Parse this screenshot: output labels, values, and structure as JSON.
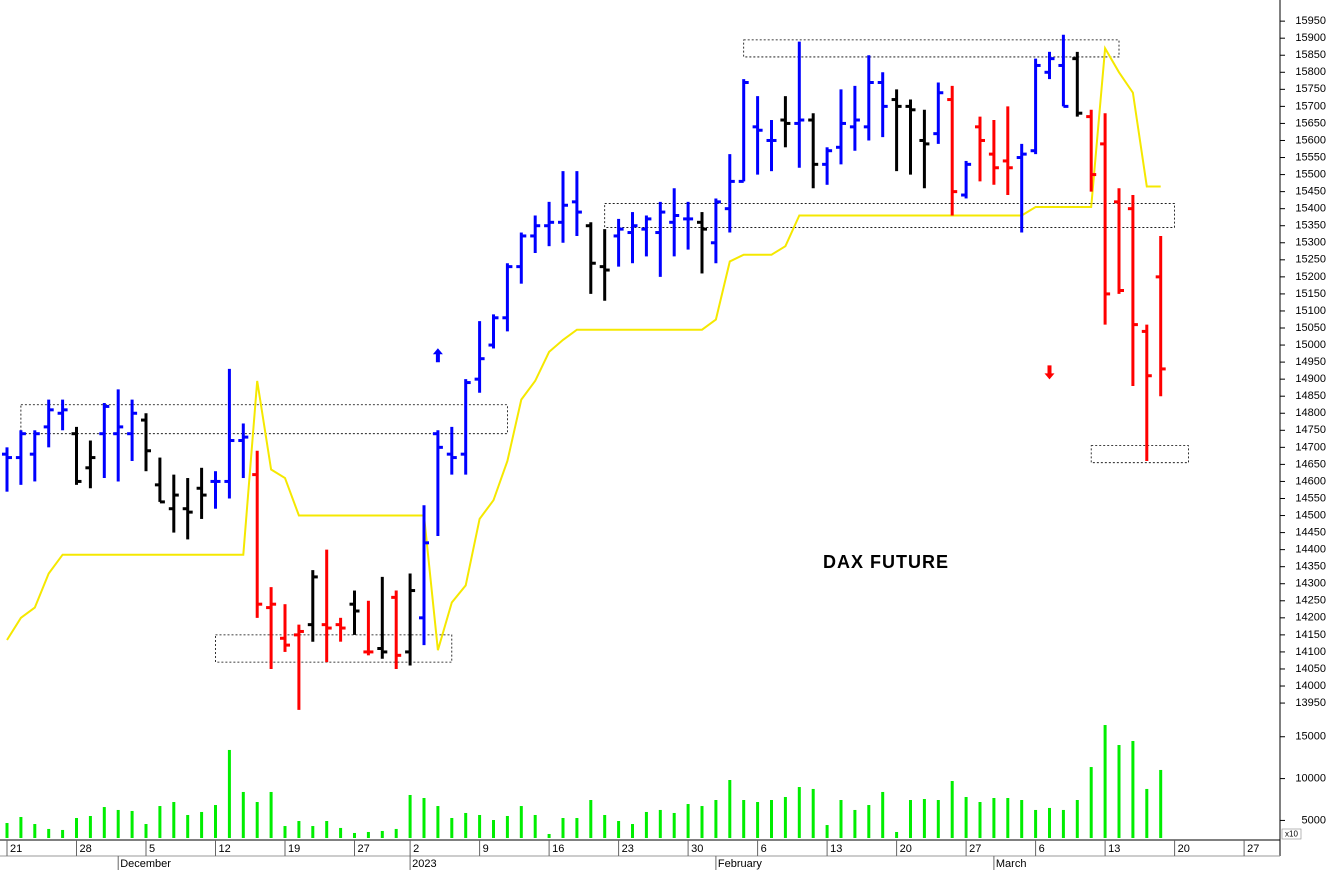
{
  "chart_data": {
    "type": "ohlc",
    "title": "DAX FUTURE",
    "categories": [
      "21",
      null,
      null,
      null,
      null,
      "28",
      null,
      null,
      null,
      null,
      "5",
      null,
      null,
      null,
      null,
      "12",
      null,
      null,
      null,
      null,
      "19",
      null,
      null,
      null,
      null,
      "27",
      null,
      null,
      null,
      "2",
      null,
      null,
      null,
      null,
      "9",
      null,
      null,
      null,
      null,
      "16",
      null,
      null,
      null,
      null,
      "23",
      null,
      null,
      null,
      null,
      "30",
      null,
      null,
      null,
      null,
      "6",
      null,
      null,
      null,
      null,
      "13",
      null,
      null,
      null,
      null,
      "20",
      null,
      null,
      null,
      null,
      "27",
      null,
      null,
      null,
      null,
      "6",
      null,
      null,
      null,
      null,
      "13",
      null,
      null,
      null,
      null,
      "20",
      null,
      null,
      null,
      null,
      "27"
    ],
    "month_labels": [
      null,
      null,
      null,
      null,
      null,
      null,
      null,
      null,
      "December",
      null,
      null,
      null,
      null,
      null,
      null,
      null,
      null,
      null,
      null,
      null,
      null,
      null,
      null,
      null,
      null,
      null,
      null,
      null,
      null,
      "2023",
      null,
      null,
      null,
      null,
      null,
      null,
      null,
      null,
      null,
      null,
      null,
      null,
      null,
      null,
      null,
      null,
      null,
      null,
      null,
      null,
      null,
      "February",
      null,
      null,
      null,
      null,
      null,
      null,
      null,
      null,
      null,
      null,
      null,
      null,
      null,
      null,
      null,
      null,
      null,
      null,
      null,
      "March",
      null,
      null,
      null,
      null,
      null,
      null,
      null,
      null,
      null,
      null,
      null,
      null,
      null,
      null,
      null,
      null,
      null,
      null
    ],
    "high": [
      14700,
      14750,
      14750,
      14840,
      14840,
      14760,
      14720,
      14830,
      14870,
      14840,
      14800,
      14670,
      14620,
      14610,
      14640,
      14630,
      14930,
      14770,
      14690,
      14290,
      14240,
      14180,
      14340,
      14400,
      14200,
      14280,
      14250,
      14320,
      14280,
      14330,
      14530,
      14750,
      14760,
      14900,
      15070,
      15090,
      15240,
      15330,
      15380,
      15420,
      15510,
      15510,
      15360,
      15340,
      15370,
      15390,
      15380,
      15420,
      15460,
      15420,
      15390,
      15430,
      15560,
      15780,
      15730,
      15660,
      15730,
      15890,
      15680,
      15580,
      15750,
      15760,
      15850,
      15800,
      15750,
      15720,
      15690,
      15770,
      15760,
      15540,
      15670,
      15660,
      15700,
      15590,
      15840,
      15860,
      15910,
      15860,
      15690,
      15680,
      15460,
      15440,
      15060,
      15320,
      null,
      null,
      null,
      null,
      null,
      null
    ],
    "low": [
      14570,
      14590,
      14600,
      14700,
      14750,
      14590,
      14580,
      14610,
      14600,
      14660,
      14630,
      14540,
      14450,
      14430,
      14490,
      14520,
      14550,
      14610,
      14200,
      14050,
      14100,
      13930,
      14130,
      14070,
      14130,
      14150,
      14090,
      14080,
      14050,
      14060,
      14120,
      14440,
      14620,
      14620,
      14860,
      14990,
      15040,
      15180,
      15270,
      15290,
      15300,
      15320,
      15150,
      15130,
      15230,
      15240,
      15260,
      15200,
      15260,
      15280,
      15210,
      15240,
      15330,
      15480,
      15500,
      15510,
      15580,
      15520,
      15460,
      15470,
      15530,
      15570,
      15600,
      15610,
      15510,
      15500,
      15460,
      15590,
      15380,
      15430,
      15480,
      15470,
      15440,
      15330,
      15560,
      15780,
      15700,
      15670,
      15450,
      15060,
      15150,
      14880,
      14660,
      14850,
      null,
      null,
      null,
      null,
      null,
      null
    ],
    "open": [
      14680,
      14670,
      14680,
      14760,
      14800,
      14740,
      14640,
      14740,
      14740,
      14740,
      14780,
      14590,
      14520,
      14520,
      14580,
      14600,
      14600,
      14720,
      14620,
      14230,
      14140,
      14150,
      14180,
      14180,
      14180,
      14240,
      14100,
      14110,
      14260,
      14100,
      14200,
      14740,
      14680,
      14680,
      14900,
      15000,
      15080,
      15230,
      15320,
      15350,
      15360,
      15420,
      15350,
      15230,
      15320,
      15330,
      15340,
      15330,
      15360,
      15370,
      15360,
      15300,
      15400,
      15480,
      15640,
      15600,
      15660,
      15650,
      15660,
      15530,
      15580,
      15640,
      15640,
      15770,
      15720,
      15700,
      15600,
      15620,
      15720,
      15440,
      15640,
      15560,
      15540,
      15550,
      15570,
      15800,
      15820,
      15840,
      15670,
      15590,
      15420,
      15400,
      15040,
      15200,
      null,
      null,
      null,
      null,
      null,
      null
    ],
    "close": [
      14670,
      14740,
      14740,
      14810,
      14810,
      14600,
      14670,
      14820,
      14760,
      14800,
      14690,
      14540,
      14560,
      14510,
      14560,
      14600,
      14720,
      14730,
      14240,
      14240,
      14120,
      14160,
      14320,
      14170,
      14170,
      14220,
      14100,
      14100,
      14090,
      14280,
      14420,
      14700,
      14670,
      14890,
      14960,
      15080,
      15230,
      15320,
      15350,
      15360,
      15410,
      15390,
      15240,
      15220,
      15340,
      15350,
      15370,
      15390,
      15380,
      15370,
      15340,
      15420,
      15480,
      15770,
      15630,
      15600,
      15650,
      15660,
      15530,
      15570,
      15650,
      15660,
      15770,
      15700,
      15700,
      15690,
      15590,
      15740,
      15450,
      15530,
      15600,
      15520,
      15520,
      15560,
      15820,
      15840,
      15700,
      15680,
      15500,
      15150,
      15160,
      15060,
      14910,
      14930,
      null,
      null,
      null,
      null,
      null,
      null
    ],
    "bar_colors": [
      "#0000ff",
      "#0000ff",
      "#0000ff",
      "#0000ff",
      "#0000ff",
      "#000000",
      "#000000",
      "#0000ff",
      "#0000ff",
      "#0000ff",
      "#000000",
      "#000000",
      "#000000",
      "#000000",
      "#000000",
      "#0000ff",
      "#0000ff",
      "#0000ff",
      "#ff0000",
      "#ff0000",
      "#ff0000",
      "#ff0000",
      "#000000",
      "#ff0000",
      "#ff0000",
      "#000000",
      "#ff0000",
      "#000000",
      "#ff0000",
      "#000000",
      "#0000ff",
      "#0000ff",
      "#0000ff",
      "#0000ff",
      "#0000ff",
      "#0000ff",
      "#0000ff",
      "#0000ff",
      "#0000ff",
      "#0000ff",
      "#0000ff",
      "#0000ff",
      "#000000",
      "#000000",
      "#0000ff",
      "#0000ff",
      "#0000ff",
      "#0000ff",
      "#0000ff",
      "#0000ff",
      "#000000",
      "#0000ff",
      "#0000ff",
      "#0000ff",
      "#0000ff",
      "#0000ff",
      "#000000",
      "#0000ff",
      "#000000",
      "#0000ff",
      "#0000ff",
      "#0000ff",
      "#0000ff",
      "#0000ff",
      "#000000",
      "#000000",
      "#000000",
      "#0000ff",
      "#ff0000",
      "#0000ff",
      "#ff0000",
      "#ff0000",
      "#ff0000",
      "#0000ff",
      "#0000ff",
      "#0000ff",
      "#0000ff",
      "#000000",
      "#ff0000",
      "#ff0000",
      "#ff0000",
      "#ff0000",
      "#ff0000",
      "#ff0000",
      null,
      null,
      null,
      null,
      null,
      null
    ],
    "ylim": [
      13915,
      16012
    ],
    "yticks": [
      13950,
      14000,
      14050,
      14100,
      14150,
      14200,
      14250,
      14300,
      14350,
      14400,
      14450,
      14500,
      14550,
      14600,
      14650,
      14700,
      14750,
      14800,
      14850,
      14900,
      14950,
      15000,
      15050,
      15100,
      15150,
      15200,
      15250,
      15300,
      15350,
      15400,
      15450,
      15500,
      15550,
      15600,
      15650,
      15700,
      15750,
      15800,
      15850,
      15900,
      15950
    ],
    "line": {
      "color": "#f5e800",
      "values": [
        14135,
        14200,
        14230,
        14330,
        14385,
        14385,
        14385,
        14385,
        14385,
        14385,
        14385,
        14385,
        14385,
        14385,
        14385,
        14385,
        14385,
        14385,
        14895,
        14635,
        14610,
        14500,
        14500,
        14500,
        14500,
        14500,
        14500,
        14500,
        14500,
        14500,
        14500,
        14105,
        14245,
        14295,
        14490,
        14545,
        14660,
        14840,
        14895,
        14980,
        15015,
        15045,
        15045,
        15045,
        15045,
        15045,
        15045,
        15045,
        15045,
        15045,
        15045,
        15075,
        15245,
        15265,
        15265,
        15265,
        15290,
        15380,
        15380,
        15380,
        15380,
        15380,
        15380,
        15380,
        15380,
        15380,
        15380,
        15380,
        15380,
        15380,
        15380,
        15380,
        15380,
        15380,
        15405,
        15405,
        15405,
        15405,
        15405,
        15870,
        15800,
        15740,
        15465,
        15465,
        null,
        null,
        null,
        null,
        null,
        null
      ]
    },
    "volume": {
      "color": "#00ee00",
      "ylim": [
        2900,
        17000
      ],
      "yticks": [
        5000,
        10000,
        15000
      ],
      "unit_label": "x10",
      "values": [
        4690,
        5410,
        4570,
        3980,
        3860,
        5290,
        5530,
        6600,
        6250,
        6130,
        4570,
        6720,
        7200,
        5650,
        6010,
        6840,
        13420,
        8400,
        7200,
        8400,
        4330,
        4930,
        4330,
        4930,
        4100,
        3500,
        3620,
        3740,
        3980,
        8040,
        7680,
        6720,
        5290,
        5890,
        5650,
        5050,
        5530,
        6720,
        5650,
        3380,
        5290,
        5290,
        7440,
        5650,
        4930,
        4570,
        6010,
        6250,
        5890,
        6960,
        6720,
        7440,
        9830,
        7440,
        7200,
        7440,
        7800,
        8990,
        8760,
        4450,
        7440,
        6250,
        6840,
        8400,
        3620,
        7440,
        7560,
        7440,
        9710,
        7800,
        7200,
        7680,
        7680,
        7440,
        6250,
        6490,
        6250,
        7440,
        11380,
        16400,
        14010,
        14490,
        8760,
        11030,
        null,
        null,
        null,
        null,
        null,
        null
      ]
    },
    "boxes": [
      {
        "from": 1,
        "to": 36,
        "low": 14740,
        "high": 14825
      },
      {
        "from": 15,
        "to": 32,
        "low": 14070,
        "high": 14150
      },
      {
        "from": 53,
        "to": 80,
        "low": 15845,
        "high": 15895
      },
      {
        "from": 43,
        "to": 84,
        "low": 15345,
        "high": 15415
      },
      {
        "from": 78,
        "to": 85,
        "low": 14655,
        "high": 14705
      }
    ],
    "arrows": [
      {
        "at": 31,
        "price": 14970,
        "direction": "up",
        "color": "#0000ff"
      },
      {
        "at": 75,
        "price": 14920,
        "direction": "down",
        "color": "#ff0000"
      }
    ]
  }
}
